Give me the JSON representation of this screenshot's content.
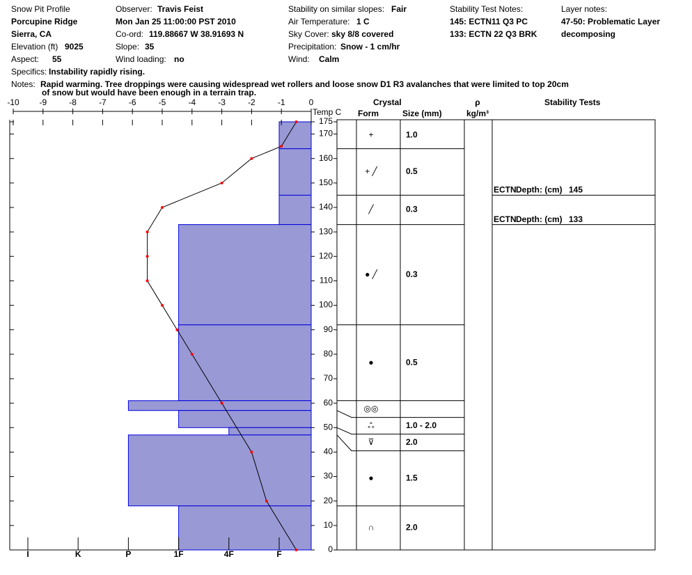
{
  "header": {
    "title": "Snow Pit Profile",
    "location": "Porcupine Ridge",
    "region": "Sierra, CA",
    "elevation": {
      "label": "Elevation (ft)",
      "value": "9025"
    },
    "aspect": {
      "label": "Aspect:",
      "value": "55"
    },
    "observer": {
      "label": "Observer:",
      "value": "Travis Feist"
    },
    "date": "Mon Jan 25 11:00:00 PST 2010",
    "coord": {
      "label": "Co-ord:",
      "value": "119.88667 W 38.91693 N"
    },
    "slope": {
      "label": "Slope:",
      "value": "35"
    },
    "wind_loading": {
      "label": "Wind loading:",
      "value": "no"
    },
    "stability": {
      "label": "Stability on similar slopes:",
      "value": "Fair"
    },
    "air_temp": {
      "label": "Air Temperature:",
      "value": "1 C"
    },
    "sky": {
      "label": "Sky Cover:",
      "value": "sky 8/8 covered"
    },
    "precip": {
      "label": "Precipitation:",
      "value": "Snow - 1 cm/hr"
    },
    "wind": {
      "label": "Wind:",
      "value": "Calm"
    },
    "test_notes": {
      "label": "Stability Test Notes:",
      "lines": [
        "145: ECTN11 Q3 PC",
        "133: ECTN 22 Q3 BRK"
      ]
    },
    "layer_notes": {
      "label": "Layer notes:",
      "lines": [
        "47-50: Problematic Layer",
        "decomposing"
      ]
    },
    "specifics": {
      "label": "Specifics:",
      "value": "Instability rapidly rising."
    },
    "notes": {
      "label": "Notes:",
      "lines": [
        "Rapid warming. Tree droppings were causing widespread wet rollers and loose snow D1 R3 avalanches that were limited to top 20cm",
        "of snow but would have been enough in a terrain trap."
      ]
    }
  },
  "chart_data": {
    "type": "snow-profile",
    "columns": {
      "temp": "Temp C",
      "crystal": "Crystal",
      "form": "Form",
      "size": "Size (mm)",
      "rho": "ρ",
      "density_unit": "kg/m³",
      "stability": "Stability Tests"
    },
    "xlim": [
      -10,
      0
    ],
    "xticks": [
      -10,
      -9,
      -8,
      -7,
      -6,
      -5,
      -4,
      -3,
      -2,
      -1,
      0
    ],
    "ylim": [
      0,
      175
    ],
    "yticks": [
      0,
      10,
      20,
      30,
      40,
      50,
      60,
      70,
      80,
      90,
      100,
      110,
      120,
      130,
      140,
      150,
      160,
      170,
      175
    ],
    "hardness_scale": [
      "I",
      "K",
      "P",
      "1F",
      "4F",
      "F"
    ],
    "bar_color": "#9999d6",
    "line_color": "#ff0000",
    "layers": [
      {
        "top": 175,
        "bottom": 164,
        "hardness": "F",
        "form": "+",
        "size": "1.0"
      },
      {
        "top": 164,
        "bottom": 145,
        "hardness": "F",
        "form": "+ ╱",
        "size": "0.5"
      },
      {
        "top": 145,
        "bottom": 133,
        "hardness": "F",
        "form": "╱",
        "size": "0.3"
      },
      {
        "top": 133,
        "bottom": 92,
        "hardness": "1F",
        "form": "● ╱",
        "size": "0.3"
      },
      {
        "top": 92,
        "bottom": 61,
        "hardness": "1F",
        "form": "●",
        "size": "0.5"
      },
      {
        "top": 61,
        "bottom": 57,
        "hardness": "P",
        "form": "◎◎",
        "size": null
      },
      {
        "top": 57,
        "bottom": 50,
        "hardness": "1F",
        "form": "ஃ",
        "size": "1.0 -  2.0"
      },
      {
        "top": 50,
        "bottom": 47,
        "hardness": "4F",
        "form": "⊽",
        "size": "2.0"
      },
      {
        "top": 47,
        "bottom": 18,
        "hardness": "P",
        "form": "●",
        "size": "1.5"
      },
      {
        "top": 18,
        "bottom": 0,
        "hardness": "1F",
        "form": "∩",
        "size": "2.0"
      }
    ],
    "temperature": {
      "depth": [
        175,
        165,
        160,
        150,
        140,
        130,
        120,
        110,
        100,
        90,
        80,
        60,
        40,
        20,
        0
      ],
      "temp": [
        -0.5,
        -1,
        -2,
        -3,
        -5,
        -5.5,
        -5.5,
        -5.5,
        -5,
        -4.5,
        -4,
        -3,
        -2,
        -1.5,
        -0.5
      ]
    },
    "tests": [
      {
        "name": "ECTN",
        "label": "Depth: (cm)",
        "depth": 145
      },
      {
        "name": "ECTN",
        "label": "Depth: (cm)",
        "depth": 133
      }
    ]
  }
}
